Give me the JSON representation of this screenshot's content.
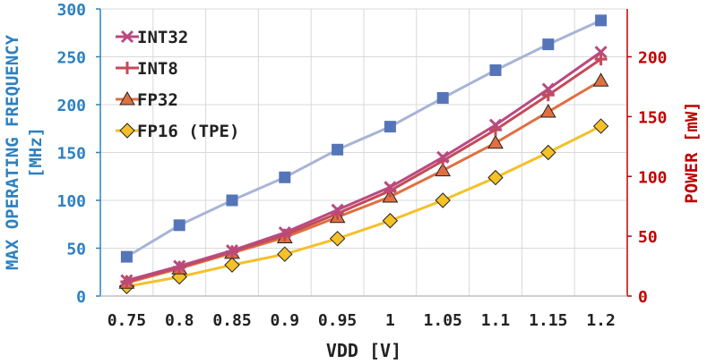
{
  "chart_data": {
    "type": "line",
    "title": "",
    "xlabel": "VDD [V]",
    "ylabel_left": [
      "MAX OPERATING FREQUENCY",
      "[MHz]"
    ],
    "ylabel_right": "POWER [mW]",
    "categories": [
      "0.75",
      "0.8",
      "0.85",
      "0.9",
      "0.95",
      "1",
      "1.05",
      "1.1",
      "1.15",
      "1.2"
    ],
    "x": [
      0.75,
      0.8,
      0.85,
      0.9,
      0.95,
      1.0,
      1.05,
      1.1,
      1.15,
      1.2
    ],
    "ylim_left": [
      0,
      300
    ],
    "yticks_left": [
      0,
      50,
      100,
      150,
      200,
      250,
      300
    ],
    "ylim_right": [
      0,
      240
    ],
    "yticks_right": [
      0,
      50,
      100,
      150,
      200
    ],
    "frequency_series": {
      "name": "Max Operating Frequency",
      "axis": "left",
      "color": "#5575b8",
      "line_color": "#a7b4d6",
      "marker": "square",
      "values": [
        41,
        74,
        100,
        124,
        153,
        177,
        207,
        236,
        263,
        288
      ]
    },
    "power_series": [
      {
        "name": "INT32",
        "axis": "right",
        "color": "#b94a80",
        "marker": "x",
        "values": [
          13,
          25,
          38,
          53,
          72,
          91,
          116,
          143,
          173,
          204
        ]
      },
      {
        "name": "INT8",
        "axis": "right",
        "color": "#c44a58",
        "marker": "plus",
        "values": [
          12,
          24,
          37,
          51,
          69,
          88,
          113,
          139,
          168,
          198
        ]
      },
      {
        "name": "FP32",
        "axis": "right",
        "color": "#e07040",
        "marker": "triangle",
        "values": [
          11,
          23,
          36,
          49,
          66,
          83,
          105,
          128,
          154,
          180
        ]
      },
      {
        "name": "FP16 (TPE)",
        "axis": "right",
        "color": "#f5c028",
        "marker": "diamond",
        "values": [
          8,
          16,
          26,
          35,
          48,
          63,
          80,
          99,
          120,
          142
        ]
      }
    ],
    "legend": {
      "placement": "top-left",
      "entries": [
        "INT32",
        "INT8",
        "FP32",
        "FP16 (TPE)"
      ]
    },
    "colors": {
      "left_axis": "#2e80c0",
      "right_axis": "#c00000",
      "text": "#222222",
      "grid": "#d9d9d9"
    },
    "grid": true
  }
}
